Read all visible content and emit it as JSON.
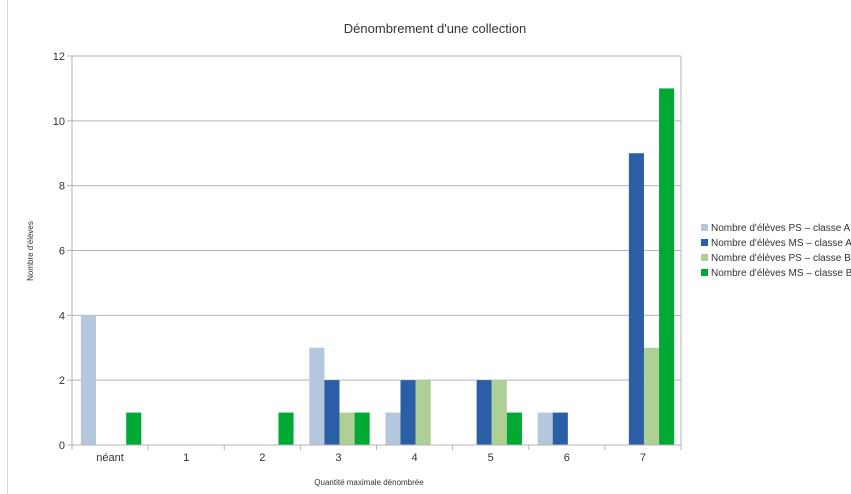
{
  "chart_data": {
    "type": "bar",
    "title": "Dénombrement d'une collection",
    "xlabel": "Quantité maximale dénombrée",
    "ylabel": "Nombre d'élèves",
    "categories": [
      "néant",
      "1",
      "2",
      "3",
      "4",
      "5",
      "6",
      "7"
    ],
    "ylim": [
      0,
      12
    ],
    "yticks": [
      "0",
      "2",
      "4",
      "6",
      "8",
      "10",
      "12"
    ],
    "grid": true,
    "legend_position": "right",
    "series": [
      {
        "name": "Nombre d'élèves PS – classe A",
        "color": "#b4c7dc",
        "values": [
          4,
          0,
          0,
          3,
          1,
          0,
          1,
          0
        ]
      },
      {
        "name": "Nombre d'élèves MS – classe A",
        "color": "#2a5fa5",
        "values": [
          0,
          0,
          0,
          2,
          2,
          2,
          1,
          9
        ]
      },
      {
        "name": "Nombre d'élèves PS – classe B",
        "color": "#afd095",
        "values": [
          0,
          0,
          0,
          1,
          2,
          2,
          0,
          3
        ]
      },
      {
        "name": "Nombre d'élèves MS – classe B",
        "color": "#00a933",
        "values": [
          1,
          0,
          1,
          1,
          0,
          1,
          0,
          11
        ]
      }
    ]
  }
}
